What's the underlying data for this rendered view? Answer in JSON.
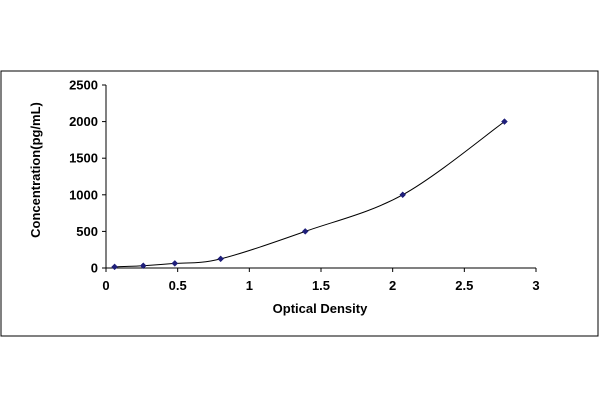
{
  "chart_data": {
    "type": "scatter",
    "title": "",
    "xlabel": "Optical Density",
    "ylabel": "Concentration(pg/mL)",
    "xlim": [
      0,
      3
    ],
    "ylim": [
      0,
      2500
    ],
    "xticks": [
      0,
      0.5,
      1,
      1.5,
      2,
      2.5,
      3
    ],
    "xtick_labels": [
      "0",
      "0.5",
      "1",
      "1.5",
      "2",
      "2.5",
      "3"
    ],
    "yticks": [
      0,
      500,
      1000,
      1500,
      2000,
      2500
    ],
    "ytick_labels": [
      "0",
      "500",
      "1000",
      "1500",
      "2000",
      "2500"
    ],
    "grid": false,
    "legend": "none",
    "trendline": "smooth curve through points",
    "series": [
      {
        "x": [
          0.06,
          0.26,
          0.48,
          0.8,
          1.39,
          2.07,
          2.78
        ],
        "y": [
          15.6,
          31.2,
          62.5,
          125,
          500,
          1000,
          2000
        ],
        "marker_color": "#1f1f7a",
        "line_color": "#000000"
      }
    ]
  }
}
